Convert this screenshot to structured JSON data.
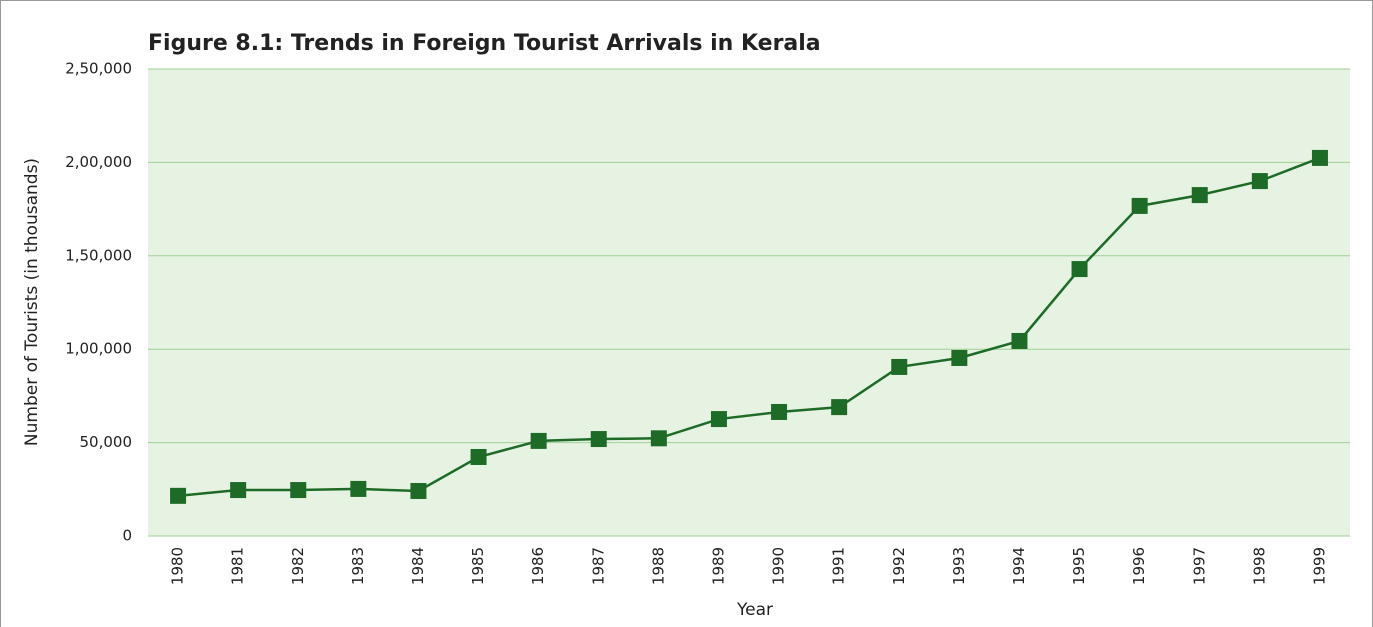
{
  "chart_data": {
    "type": "line",
    "title": "Figure 8.1: Trends in Foreign Tourist Arrivals in Kerala",
    "y_label": "Number of Tourists (in thousands)",
    "x_label": "Year",
    "categories": [
      "1980",
      "1981",
      "1982",
      "1983",
      "1984",
      "1985",
      "1986",
      "1987",
      "1988",
      "1989",
      "1990",
      "1991",
      "1992",
      "1993",
      "1994",
      "1995",
      "1996",
      "1997",
      "1998",
      "1999"
    ],
    "series": [
      {
        "name": "Foreign Tourist Arrivals",
        "color": "#1d6b26",
        "values": [
          21500,
          24600,
          24600,
          25200,
          24100,
          42300,
          50900,
          51900,
          52300,
          62600,
          66400,
          69000,
          90500,
          95300,
          104400,
          142900,
          176700,
          182500,
          190000,
          202400
        ]
      }
    ],
    "ylim": [
      0,
      250000
    ],
    "yticks": [
      0,
      {
        "value": 50000,
        "label": "50,000"
      },
      {
        "value": 100000,
        "label": "1,00,000"
      },
      {
        "value": 150000,
        "label": "1,50,000"
      },
      {
        "value": 200000,
        "label": "2,00,000"
      },
      {
        "value": 250000,
        "label": "2,50,000"
      }
    ],
    "grid": true,
    "plot_background": "#e6f3e3"
  }
}
